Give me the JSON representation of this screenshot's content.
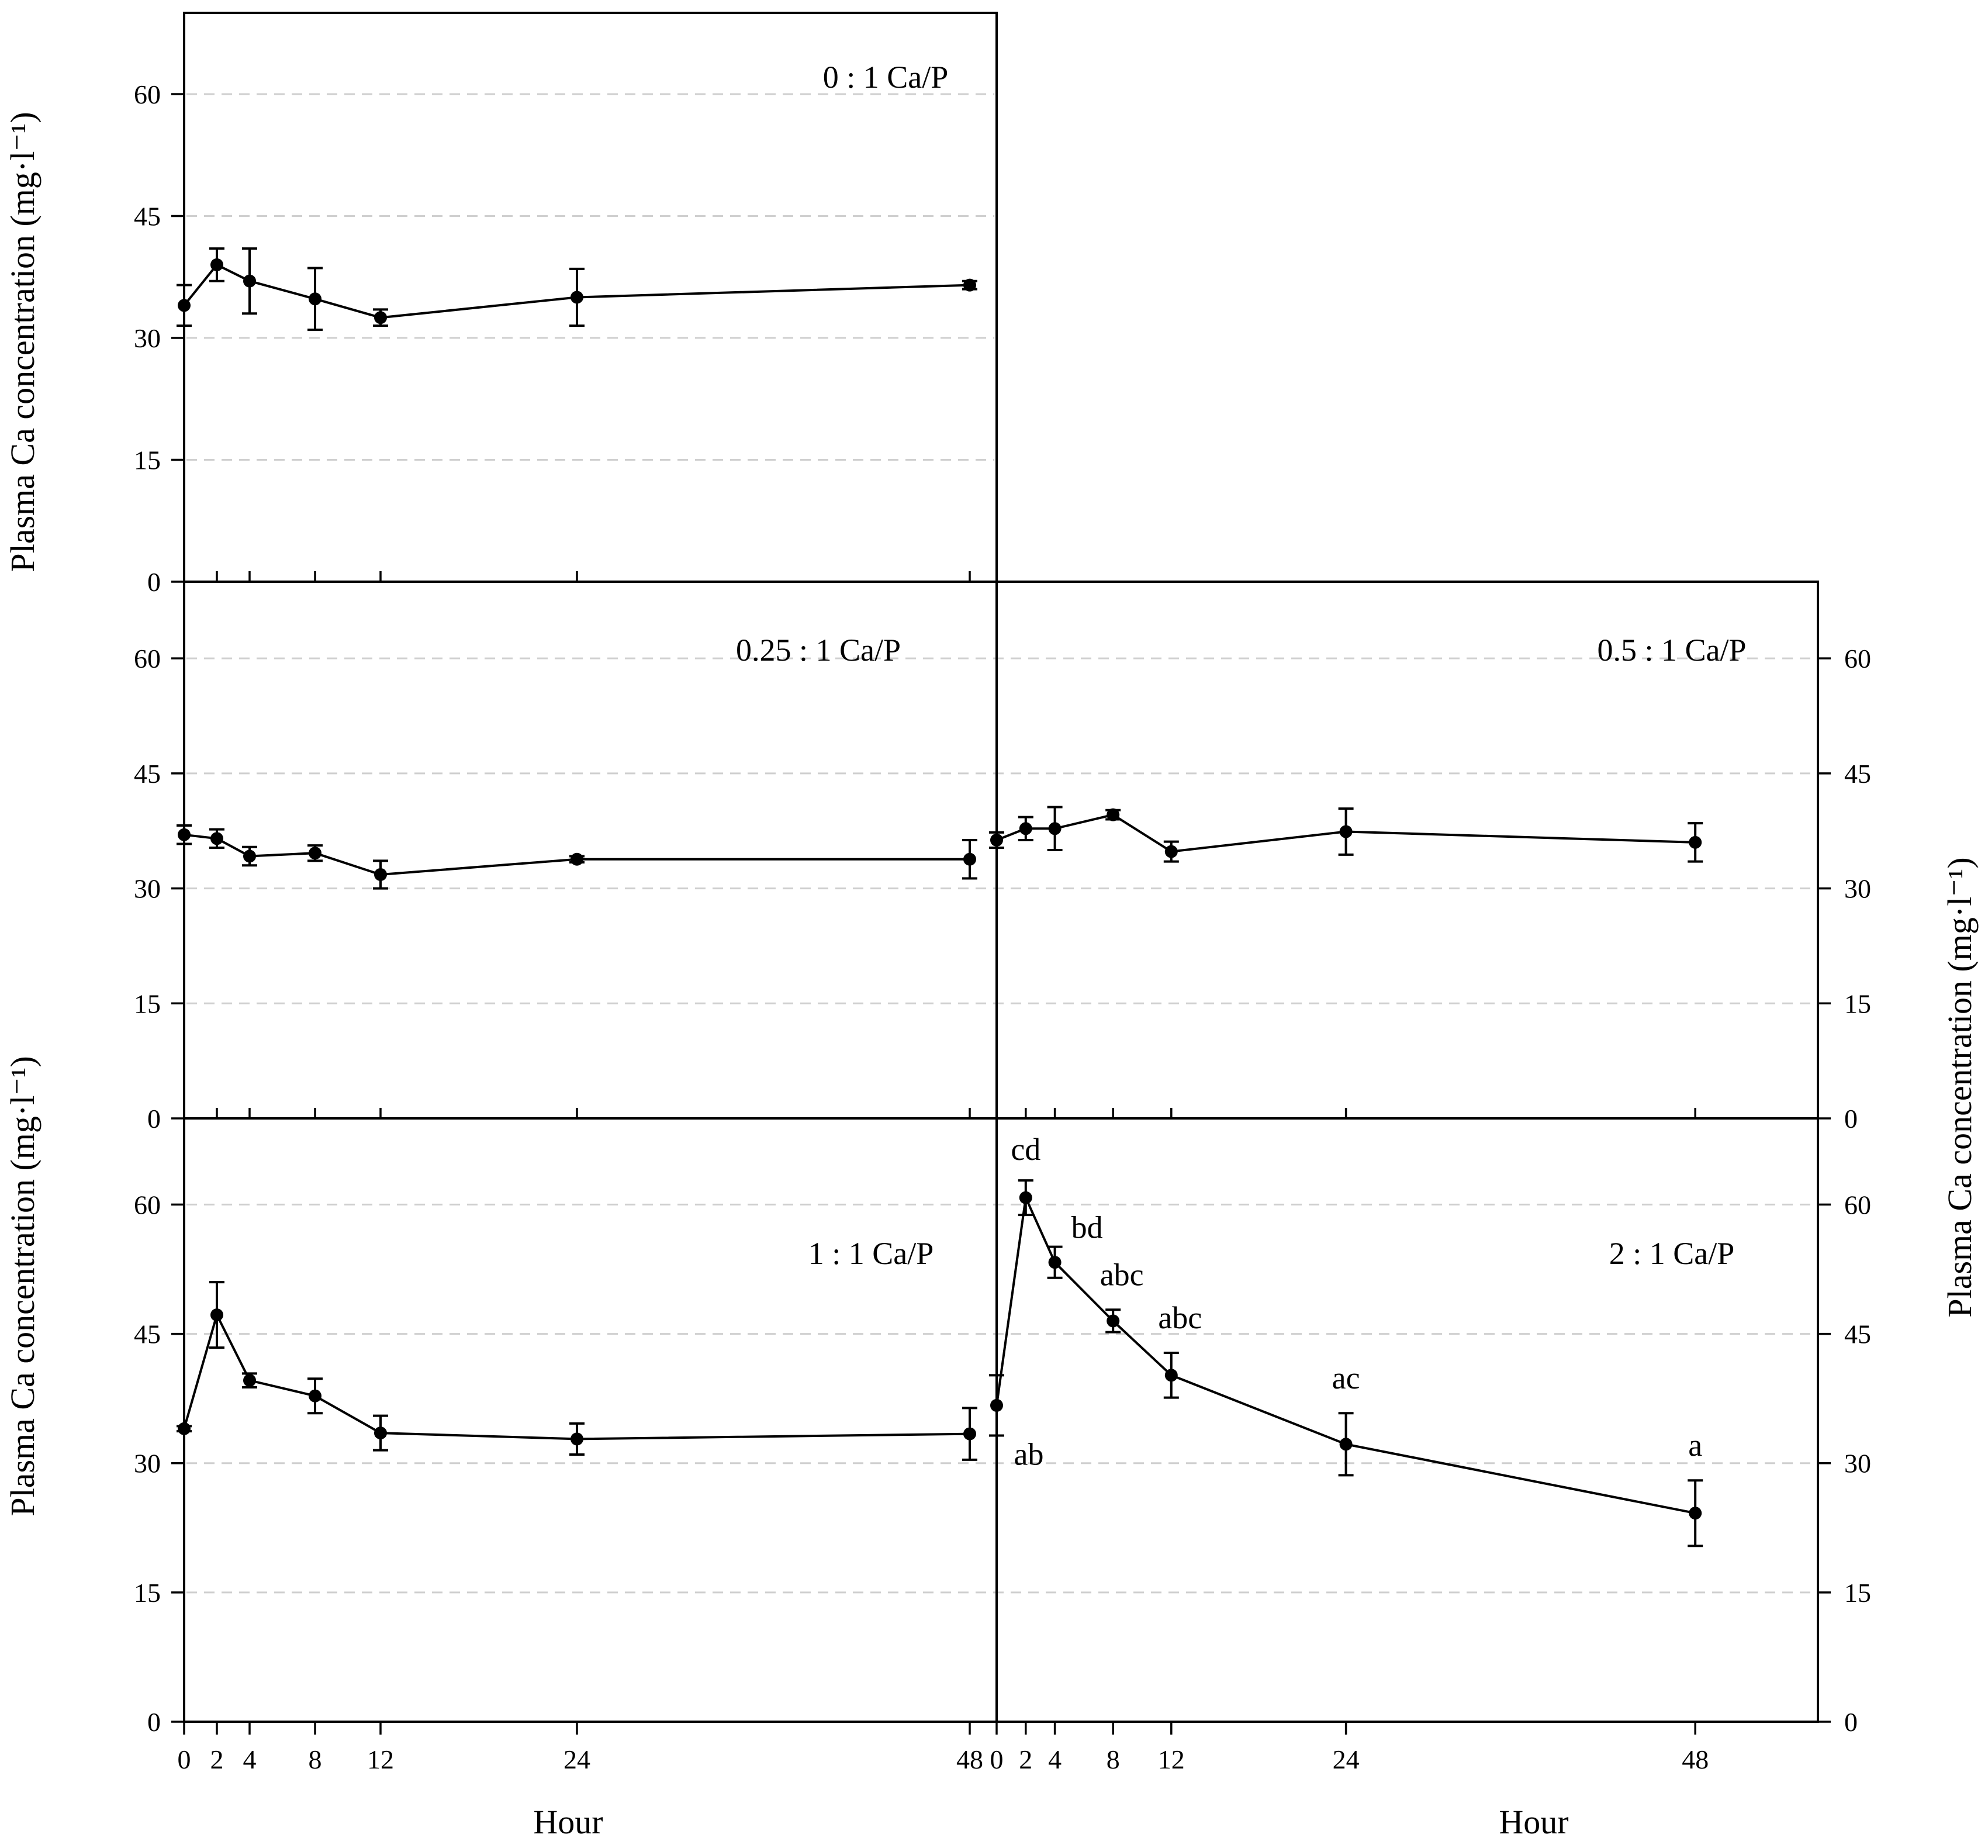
{
  "chart_data": {
    "type": "line",
    "xlabel": "Hour",
    "ylabel": "Plasma Ca concentration (mg·l⁻¹)",
    "ylim": [
      0,
      70
    ],
    "yticks": [
      0,
      15,
      30,
      45,
      60
    ],
    "xticks": [
      0,
      2,
      4,
      8,
      12,
      24,
      48
    ],
    "grid": "dashed horizontal",
    "panels": [
      {
        "id": "p0",
        "title": "0 : 1 Ca/P",
        "x": [
          0,
          2,
          4,
          8,
          12,
          24,
          48
        ],
        "values": [
          34,
          39,
          37,
          34.8,
          32.5,
          35,
          36.5
        ],
        "errors": [
          2.5,
          2,
          4,
          3.8,
          1,
          3.5,
          0.5
        ],
        "labels": []
      },
      {
        "id": "p025",
        "title": "0.25 : 1 Ca/P",
        "x": [
          0,
          2,
          4,
          8,
          12,
          24,
          48
        ],
        "values": [
          37,
          36.5,
          34.2,
          34.6,
          31.8,
          33.8,
          33.8
        ],
        "errors": [
          1.2,
          1.2,
          1.2,
          1,
          1.8,
          0.4,
          2.5
        ],
        "labels": []
      },
      {
        "id": "p05",
        "title": "0.5 : 1 Ca/P",
        "x": [
          0,
          2,
          4,
          8,
          12,
          24,
          48
        ],
        "values": [
          36.3,
          37.8,
          37.8,
          39.6,
          34.8,
          37.4,
          36
        ],
        "errors": [
          1,
          1.5,
          2.8,
          0.6,
          1.3,
          3,
          2.5
        ],
        "labels": []
      },
      {
        "id": "p1",
        "title": "1 : 1 Ca/P",
        "x": [
          0,
          2,
          4,
          8,
          12,
          24,
          48
        ],
        "values": [
          34,
          47.2,
          39.6,
          37.8,
          33.5,
          32.8,
          33.4
        ],
        "errors": [
          0.3,
          3.8,
          0.8,
          2,
          2,
          1.8,
          3
        ],
        "labels": []
      },
      {
        "id": "p2",
        "title": "2 : 1 Ca/P",
        "x": [
          0,
          2,
          4,
          8,
          12,
          24,
          48
        ],
        "values": [
          36.7,
          60.8,
          53.3,
          46.5,
          40.2,
          32.2,
          24.2
        ],
        "errors": [
          3.5,
          2,
          1.8,
          1.3,
          2.6,
          3.6,
          3.8
        ],
        "labels": [
          "ab",
          "cd",
          "bd",
          "abc",
          "abc",
          "ac",
          "a"
        ]
      }
    ]
  }
}
